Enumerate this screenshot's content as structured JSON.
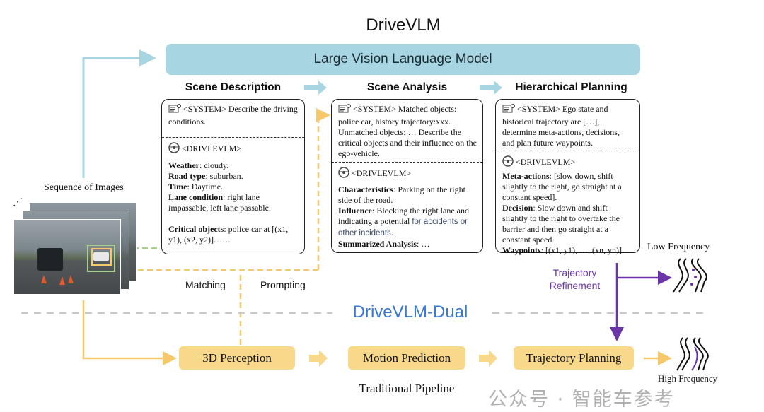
{
  "title": "DriveVLM",
  "lvlm_label": "Large Vision Language Model",
  "stages": {
    "scene_description": {
      "heading": "Scene Description",
      "system_tag": "<SYSTEM>",
      "system_text": "Describe the driving conditions.",
      "model_tag": "<DRIVLEVLM>",
      "fields": [
        {
          "key": "Weather",
          "value": ": cloudy."
        },
        {
          "key": "Road type",
          "value": ": suburban."
        },
        {
          "key": "Time",
          "value": ": Daytime."
        },
        {
          "key": "Lane condition",
          "value": ": right lane impassable, left lane passable."
        },
        {
          "key": "Critical objects",
          "value": ": police car at [(x1, y1), (x2, y2)]……"
        }
      ]
    },
    "scene_analysis": {
      "heading": "Scene Analysis",
      "system_tag": "<SYSTEM>",
      "system_text": "Matched objects: police car, history trajectory:xxx. Unmatched objects: … Describe the critical objects and their influence on the ego-vehicle.",
      "model_tag": "<DRIVLEVLM>",
      "fields": [
        {
          "key": "Characteristics",
          "value": ": Parking on the right side of the road."
        },
        {
          "key": "Influence",
          "value": ": Blocking the right lane and indicating a potential ",
          "extra": "for accidents or other incidents."
        },
        {
          "key": "Summarized Analysis",
          "value": ": …"
        }
      ]
    },
    "hierarchical_planning": {
      "heading": "Hierarchical Planning",
      "system_tag": "<SYSTEM>",
      "system_text": "Ego state and historical trajectory are […], determine meta-actions, decisions, and plan future waypoints.",
      "model_tag": "<DRIVLEVLM>",
      "fields": [
        {
          "key": "Meta-actions",
          "value": ": [slow down, shift slightly to the right, go straight at a constant speed]."
        },
        {
          "key": "Decision",
          "value": ": Slow down and shift slightly to the right to overtake the barrier and then go straight at a constant speed."
        },
        {
          "key": "Waypoints",
          "value": ": [(x1, y1), …, (xn, yn)]."
        }
      ]
    }
  },
  "images_label": "Sequence of Images",
  "matching_label": "Matching",
  "prompting_label": "Prompting",
  "dual_label": "DriveVLM-Dual",
  "pipeline": {
    "steps": [
      "3D Perception",
      "Motion Prediction",
      "Trajectory Planning"
    ],
    "label": "Traditional Pipeline"
  },
  "refinement_label": [
    "Trajectory",
    "Refinement"
  ],
  "low_freq_label": "Low Frequency",
  "high_freq_label": "High Frequency",
  "watermark": "公众号 · 智能车参考",
  "colors": {
    "lvlm": "#a8d5e2",
    "pipeline": "#f8d88a",
    "dual": "#3a78d8",
    "refinement": "#6b35a8",
    "matching": "#a9d18e",
    "prompting": "#f8d88a"
  }
}
